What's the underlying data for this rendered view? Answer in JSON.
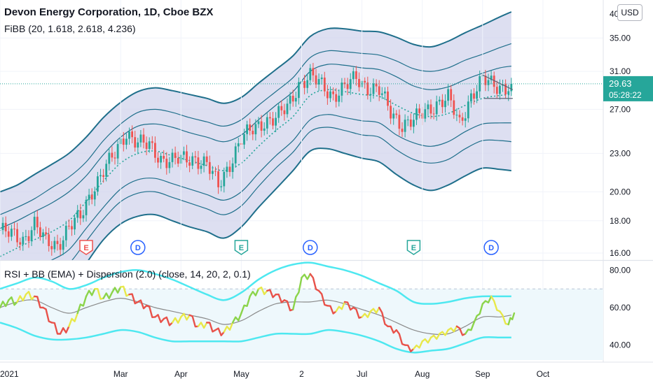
{
  "header": {
    "title": "Devon Energy Corporation, 1D, Cboe BZX",
    "indicator": "FiBB (20, 1.618, 2.618, 4.236)",
    "currency_button": "USD"
  },
  "rsi_panel": {
    "legend": "RSI + BB (EMA) + Dispersion (2.0) (close, 14, 20, 2, 0.1)"
  },
  "colors": {
    "band_fill": "#d1d4ec",
    "band_line": "#1f6f8b",
    "basis_line": "#26a69a",
    "candle_up": "#26a69a",
    "candle_down": "#ef5350",
    "price_label_bg": "#26a69a",
    "rsi_band": "#4ee8f0",
    "rsi_basis": "#8a8a8a",
    "rsi_up": "#8bd44a",
    "rsi_mid": "#e8e84a",
    "rsi_down": "#e8524a",
    "rsi_zone": "#eef8fc"
  },
  "chart_data": [
    {
      "type": "candlestick",
      "title": "Devon Energy Corporation, 1D, Cboe BZX",
      "y_scale": "log",
      "ylim": [
        15.6,
        40.2
      ],
      "y_ticks": [
        "35.00",
        "31.00",
        "27.00",
        "23.00",
        "20.00",
        "18.00",
        "16.00"
      ],
      "y_tick_values": [
        35,
        31,
        27,
        23,
        20,
        18,
        16
      ],
      "partial_top_tick": "40",
      "last_price": {
        "value": "29.63",
        "countdown": "05:28:22"
      },
      "x_ticks": [
        "2021",
        "Mar",
        "Apr",
        "May",
        "2",
        "Jul",
        "Aug",
        "Sep",
        "Oct"
      ],
      "x_tick_index": [
        0,
        42,
        63,
        84,
        105,
        126,
        147,
        168,
        189
      ],
      "price_points": [
        [
          0,
          17.4
        ],
        [
          4,
          17.1
        ],
        [
          8,
          16.8
        ],
        [
          12,
          17.8
        ],
        [
          16,
          16.6
        ],
        [
          20,
          16.5
        ],
        [
          24,
          17.6
        ],
        [
          28,
          18.2
        ],
        [
          32,
          20.1
        ],
        [
          36,
          21.6
        ],
        [
          40,
          22.9
        ],
        [
          44,
          24.9
        ],
        [
          48,
          23.9
        ],
        [
          52,
          23.6
        ],
        [
          56,
          22.6
        ],
        [
          60,
          22.4
        ],
        [
          64,
          22.5
        ],
        [
          68,
          22.6
        ],
        [
          72,
          22.1
        ],
        [
          76,
          20.4
        ],
        [
          80,
          22.2
        ],
        [
          84,
          24.2
        ],
        [
          88,
          25.1
        ],
        [
          92,
          25.9
        ],
        [
          96,
          26.1
        ],
        [
          100,
          27.2
        ],
        [
          104,
          29.6
        ],
        [
          108,
          30.4
        ],
        [
          112,
          29.5
        ],
        [
          116,
          28.4
        ],
        [
          120,
          29.2
        ],
        [
          124,
          30.3
        ],
        [
          128,
          29.3
        ],
        [
          132,
          28.9
        ],
        [
          136,
          26.7
        ],
        [
          140,
          25.6
        ],
        [
          144,
          25.9
        ],
        [
          148,
          26.8
        ],
        [
          152,
          27.6
        ],
        [
          156,
          28.1
        ],
        [
          160,
          25.6
        ],
        [
          164,
          28.4
        ],
        [
          168,
          30.0
        ],
        [
          172,
          29.5
        ],
        [
          176,
          29.3
        ],
        [
          178,
          29.63
        ]
      ],
      "fib_bands": {
        "index": [
          0,
          6,
          12,
          18,
          24,
          30,
          36,
          42,
          48,
          54,
          60,
          66,
          72,
          78,
          84,
          90,
          96,
          102,
          108,
          114,
          120,
          126,
          132,
          138,
          144,
          150,
          156,
          162,
          168,
          174,
          178
        ],
        "basis": [
          15.8,
          16.3,
          16.8,
          17.3,
          18.0,
          19.3,
          20.8,
          22.2,
          23.0,
          23.2,
          22.8,
          22.4,
          22.0,
          21.6,
          22.2,
          23.6,
          25.0,
          26.3,
          28.4,
          29.0,
          28.8,
          28.5,
          28.3,
          27.4,
          26.6,
          26.3,
          26.6,
          27.4,
          28.1,
          28.4,
          28.5
        ],
        "upper_1_618": [
          17.5,
          18.0,
          18.6,
          19.2,
          20.0,
          21.2,
          22.9,
          24.4,
          25.4,
          25.6,
          25.3,
          24.8,
          24.4,
          24.0,
          24.6,
          26.0,
          27.4,
          28.8,
          31.0,
          31.8,
          31.7,
          31.4,
          31.2,
          30.4,
          29.4,
          29.0,
          29.3,
          30.1,
          30.8,
          31.4,
          31.6
        ],
        "upper_2_618": [
          18.4,
          18.9,
          19.5,
          20.3,
          21.1,
          22.3,
          24.1,
          25.6,
          26.7,
          27.0,
          26.7,
          26.2,
          25.8,
          25.4,
          26.0,
          27.4,
          28.8,
          30.3,
          32.6,
          33.4,
          33.3,
          33.1,
          32.9,
          32.2,
          31.3,
          31.0,
          31.4,
          32.3,
          33.0,
          33.8,
          34.3
        ],
        "upper_4_236": [
          20.0,
          20.5,
          21.3,
          22.1,
          23.0,
          24.4,
          26.2,
          27.7,
          28.8,
          29.2,
          28.9,
          28.5,
          28.1,
          27.6,
          28.2,
          29.7,
          31.2,
          32.8,
          35.2,
          36.2,
          36.2,
          35.9,
          35.8,
          35.1,
          34.2,
          33.9,
          34.6,
          35.7,
          36.7,
          37.8,
          38.5
        ],
        "lower_1_618": [
          14.4,
          14.8,
          15.2,
          15.6,
          16.2,
          17.5,
          18.9,
          20.2,
          20.9,
          21.0,
          20.6,
          20.2,
          19.8,
          19.4,
          20.0,
          21.4,
          22.8,
          24.1,
          26.0,
          26.5,
          26.2,
          25.9,
          25.7,
          24.6,
          23.9,
          23.6,
          24.0,
          24.9,
          25.6,
          25.7,
          25.7
        ],
        "lower_2_618": [
          13.7,
          14.1,
          14.5,
          14.8,
          15.4,
          16.7,
          18.1,
          19.3,
          19.9,
          20.0,
          19.6,
          19.2,
          18.8,
          18.4,
          19.0,
          20.4,
          21.8,
          23.1,
          24.9,
          25.3,
          25.0,
          24.6,
          24.4,
          23.3,
          22.5,
          22.2,
          22.5,
          23.4,
          24.1,
          24.1,
          24.0
        ],
        "lower_4_236": [
          12.5,
          12.9,
          13.2,
          13.4,
          14.0,
          15.4,
          16.8,
          17.8,
          18.3,
          18.4,
          18.0,
          17.6,
          17.3,
          16.9,
          17.6,
          18.9,
          20.2,
          21.6,
          23.2,
          23.4,
          23.0,
          22.6,
          22.3,
          21.3,
          20.5,
          20.1,
          20.5,
          21.2,
          21.8,
          21.7,
          21.6
        ]
      },
      "event_markers": [
        {
          "label": "E",
          "index": 30,
          "style": "red"
        },
        {
          "label": "D",
          "index": 48,
          "style": "blue"
        },
        {
          "label": "E",
          "index": 84,
          "style": "green"
        },
        {
          "label": "D",
          "index": 108,
          "style": "blue"
        },
        {
          "label": "E",
          "index": 144,
          "style": "green"
        },
        {
          "label": "D",
          "index": 171,
          "style": "blue"
        }
      ]
    },
    {
      "type": "line",
      "title": "RSI + BB (EMA) + Dispersion (2.0) (close, 14, 20, 2, 0.1)",
      "ylim": [
        32,
        85
      ],
      "y_ticks": [
        "80.00",
        "60.00",
        "40.00"
      ],
      "y_tick_values": [
        80,
        60,
        40
      ],
      "zone": [
        30,
        70
      ],
      "rsi": {
        "index": [
          0,
          3,
          6,
          9,
          12,
          15,
          18,
          21,
          24,
          27,
          30,
          33,
          36,
          39,
          42,
          45,
          48,
          51,
          54,
          57,
          60,
          63,
          66,
          69,
          72,
          75,
          78,
          81,
          84,
          87,
          90,
          93,
          96,
          99,
          102,
          105,
          108,
          111,
          114,
          117,
          120,
          123,
          126,
          129,
          132,
          135,
          138,
          141,
          144,
          147,
          150,
          153,
          156,
          159,
          162,
          165,
          168,
          171,
          174,
          177,
          179
        ],
        "values": [
          60,
          64,
          63,
          67,
          66,
          60,
          52,
          46,
          50,
          57,
          66,
          70,
          65,
          68,
          71,
          67,
          63,
          61,
          55,
          54,
          52,
          55,
          56,
          50,
          52,
          48,
          47,
          52,
          57,
          66,
          70,
          69,
          67,
          64,
          59,
          76,
          78,
          69,
          61,
          58,
          63,
          60,
          55,
          58,
          60,
          50,
          48,
          40,
          38,
          42,
          44,
          46,
          48,
          50,
          46,
          52,
          62,
          66,
          58,
          51,
          57
        ],
        "colors": [
          "up",
          "up",
          "up",
          "mid",
          "mid",
          "down",
          "down",
          "down",
          "down",
          "mid",
          "up",
          "up",
          "mid",
          "up",
          "up",
          "mid",
          "down",
          "down",
          "down",
          "down",
          "down",
          "mid",
          "mid",
          "down",
          "mid",
          "down",
          "down",
          "mid",
          "up",
          "up",
          "up",
          "mid",
          "down",
          "down",
          "down",
          "up",
          "up",
          "down",
          "down",
          "down",
          "mid",
          "down",
          "down",
          "mid",
          "mid",
          "down",
          "down",
          "down",
          "down",
          "mid",
          "mid",
          "mid",
          "mid",
          "mid",
          "down",
          "up",
          "up",
          "up",
          "mid",
          "mid",
          "up"
        ]
      },
      "rsi_bb": {
        "index": [
          0,
          6,
          12,
          18,
          24,
          30,
          36,
          42,
          48,
          54,
          60,
          66,
          72,
          78,
          84,
          90,
          96,
          102,
          108,
          114,
          120,
          126,
          132,
          138,
          144,
          150,
          156,
          162,
          168,
          174,
          178
        ],
        "basis": [
          60,
          63,
          64,
          60,
          57,
          60,
          63,
          65,
          63,
          60,
          58,
          56,
          54,
          51,
          53,
          58,
          62,
          63,
          63,
          64,
          62,
          59,
          56,
          52,
          48,
          46,
          46,
          50,
          55,
          55,
          56
        ],
        "upper": [
          70,
          73,
          76,
          74,
          70,
          72,
          76,
          79,
          80,
          78,
          75,
          71,
          67,
          64,
          68,
          75,
          80,
          83,
          84,
          82,
          80,
          77,
          73,
          69,
          63,
          62,
          63,
          65,
          66,
          66,
          66
        ],
        "lower": [
          52,
          49,
          45,
          43,
          43,
          44,
          46,
          48,
          47,
          44,
          42,
          42,
          42,
          42,
          42,
          44,
          46,
          46,
          46,
          48,
          47,
          45,
          42,
          38,
          36,
          37,
          38,
          41,
          44,
          44,
          44
        ]
      }
    }
  ]
}
